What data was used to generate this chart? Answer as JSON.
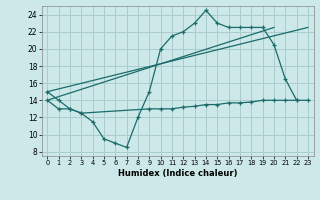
{
  "background_color": "#cce8e8",
  "grid_color": "#aacccc",
  "line_color": "#1a6b6b",
  "xlabel": "Humidex (Indice chaleur)",
  "xlim": [
    -0.5,
    23.5
  ],
  "ylim": [
    7.5,
    25
  ],
  "yticks": [
    8,
    10,
    12,
    14,
    16,
    18,
    20,
    22,
    24
  ],
  "xticks": [
    0,
    1,
    2,
    3,
    4,
    5,
    6,
    7,
    8,
    9,
    10,
    11,
    12,
    13,
    14,
    15,
    16,
    17,
    18,
    19,
    20,
    21,
    22,
    23
  ],
  "series1_x": [
    0,
    1,
    2,
    3,
    4,
    5,
    6,
    7,
    8,
    9,
    10,
    11,
    12,
    13,
    14,
    15,
    16,
    17,
    18,
    19,
    20,
    21,
    22
  ],
  "series1_y": [
    15.0,
    14.0,
    13.0,
    12.5,
    11.5,
    9.5,
    9.0,
    8.5,
    12.0,
    15.0,
    20.0,
    21.5,
    22.0,
    23.0,
    24.5,
    23.0,
    22.5,
    22.5,
    22.5,
    22.5,
    20.5,
    16.5,
    14.0
  ],
  "series2_x": [
    0,
    1,
    2,
    3,
    9,
    10,
    11,
    12,
    13,
    14,
    15,
    16,
    17,
    18,
    19,
    20,
    21,
    22,
    23
  ],
  "series2_y": [
    14.0,
    13.0,
    13.0,
    12.5,
    13.0,
    13.0,
    13.0,
    13.2,
    13.3,
    13.5,
    13.5,
    13.7,
    13.7,
    13.8,
    14.0,
    14.0,
    14.0,
    14.0,
    14.0
  ],
  "trend1_x": [
    0,
    20
  ],
  "trend1_y": [
    14.0,
    22.5
  ],
  "trend2_x": [
    0,
    23
  ],
  "trend2_y": [
    15.0,
    22.5
  ]
}
